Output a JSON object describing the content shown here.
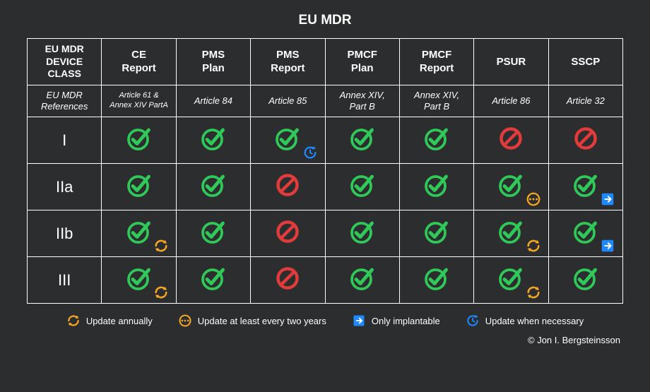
{
  "title": "EU MDR",
  "colors": {
    "background": "#2b2d2e",
    "border": "#ffffff",
    "text": "#ffffff",
    "check": "#30c858",
    "no": "#e13b3b",
    "annual": "#f5a623",
    "two_year": "#f5a623",
    "implantable": "#1e88ff",
    "necessary": "#1e88ff"
  },
  "columns": [
    {
      "header": "EU MDR DEVICE CLASS",
      "reference": "EU MDR References"
    },
    {
      "header": "CE Report",
      "reference": "Article 61 & Annex XIV PartA"
    },
    {
      "header": "PMS Plan",
      "reference": "Article 84"
    },
    {
      "header": "PMS Report",
      "reference": "Article 85"
    },
    {
      "header": "PMCF Plan",
      "reference": "Annex XIV, Part B"
    },
    {
      "header": "PMCF Report",
      "reference": "Annex XIV, Part B"
    },
    {
      "header": "PSUR",
      "reference": "Article 86"
    },
    {
      "header": "SSCP",
      "reference": "Article 32"
    }
  ],
  "rows": [
    {
      "label": "I",
      "cells": [
        {
          "value": "yes"
        },
        {
          "value": "yes"
        },
        {
          "value": "yes",
          "overlay": "necessary"
        },
        {
          "value": "yes"
        },
        {
          "value": "yes"
        },
        {
          "value": "no"
        },
        {
          "value": "no"
        }
      ]
    },
    {
      "label": "IIa",
      "cells": [
        {
          "value": "yes"
        },
        {
          "value": "yes"
        },
        {
          "value": "no"
        },
        {
          "value": "yes"
        },
        {
          "value": "yes"
        },
        {
          "value": "yes",
          "overlay": "two_year"
        },
        {
          "value": "yes",
          "overlay": "implantable"
        }
      ]
    },
    {
      "label": "IIb",
      "cells": [
        {
          "value": "yes",
          "overlay": "annual"
        },
        {
          "value": "yes"
        },
        {
          "value": "no"
        },
        {
          "value": "yes"
        },
        {
          "value": "yes"
        },
        {
          "value": "yes",
          "overlay": "annual"
        },
        {
          "value": "yes",
          "overlay": "implantable"
        }
      ]
    },
    {
      "label": "III",
      "cells": [
        {
          "value": "yes",
          "overlay": "annual"
        },
        {
          "value": "yes"
        },
        {
          "value": "no"
        },
        {
          "value": "yes"
        },
        {
          "value": "yes"
        },
        {
          "value": "yes",
          "overlay": "annual"
        },
        {
          "value": "yes"
        }
      ]
    }
  ],
  "legend": [
    {
      "icon": "annual",
      "label": "Update annually"
    },
    {
      "icon": "two_year",
      "label": "Update at least every two years"
    },
    {
      "icon": "implantable",
      "label": "Only implantable"
    },
    {
      "icon": "necessary",
      "label": "Update when necessary"
    }
  ],
  "copyright": "© Jon I. Bergsteinsson"
}
